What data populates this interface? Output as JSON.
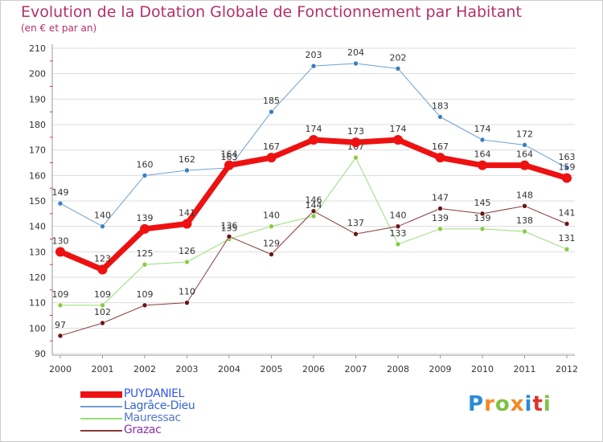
{
  "header": {
    "title": "Evolution de la Dotation Globale de Fonctionnement par Habitant",
    "subtitle": "(en € et par an)"
  },
  "chart_data": {
    "type": "line",
    "x": [
      "2000",
      "2001",
      "2002",
      "2003",
      "2004",
      "2005",
      "2006",
      "2007",
      "2008",
      "2009",
      "2010",
      "2011",
      "2012"
    ],
    "ylim": [
      90,
      210
    ],
    "yticks": [
      90,
      100,
      110,
      120,
      130,
      140,
      150,
      160,
      170,
      180,
      190,
      200,
      210
    ],
    "grid": true,
    "legend_position": "bottom-left",
    "series": [
      {
        "name": "Lagrâce-Dieu",
        "color": "#6fa0cf",
        "marker": "#3a7fc1",
        "width": 1,
        "values": [
          149,
          140,
          160,
          162,
          163,
          185,
          203,
          204,
          202,
          183,
          174,
          172,
          163
        ]
      },
      {
        "name": "Mauressac",
        "color": "#99dd77",
        "marker": "#88cc44",
        "width": 1,
        "values": [
          109,
          109,
          125,
          126,
          135,
          140,
          144,
          167,
          133,
          139,
          139,
          138,
          131
        ]
      },
      {
        "name": "Grazac",
        "color": "#8a3a3a",
        "marker": "#6a1515",
        "width": 1,
        "values": [
          97,
          102,
          109,
          110,
          136,
          129,
          146,
          137,
          140,
          147,
          145,
          148,
          141
        ]
      },
      {
        "name": "PUYDANIEL",
        "color": "#ee1111",
        "marker": "#ee1111",
        "width": 7,
        "values": [
          130,
          123,
          139,
          141,
          164,
          167,
          174,
          173,
          174,
          167,
          164,
          164,
          159
        ]
      }
    ],
    "legend_order": [
      "PUYDANIEL",
      "Lagrâce-Dieu",
      "Mauressac",
      "Grazac"
    ]
  },
  "logo": {
    "text": "Proxiti"
  }
}
